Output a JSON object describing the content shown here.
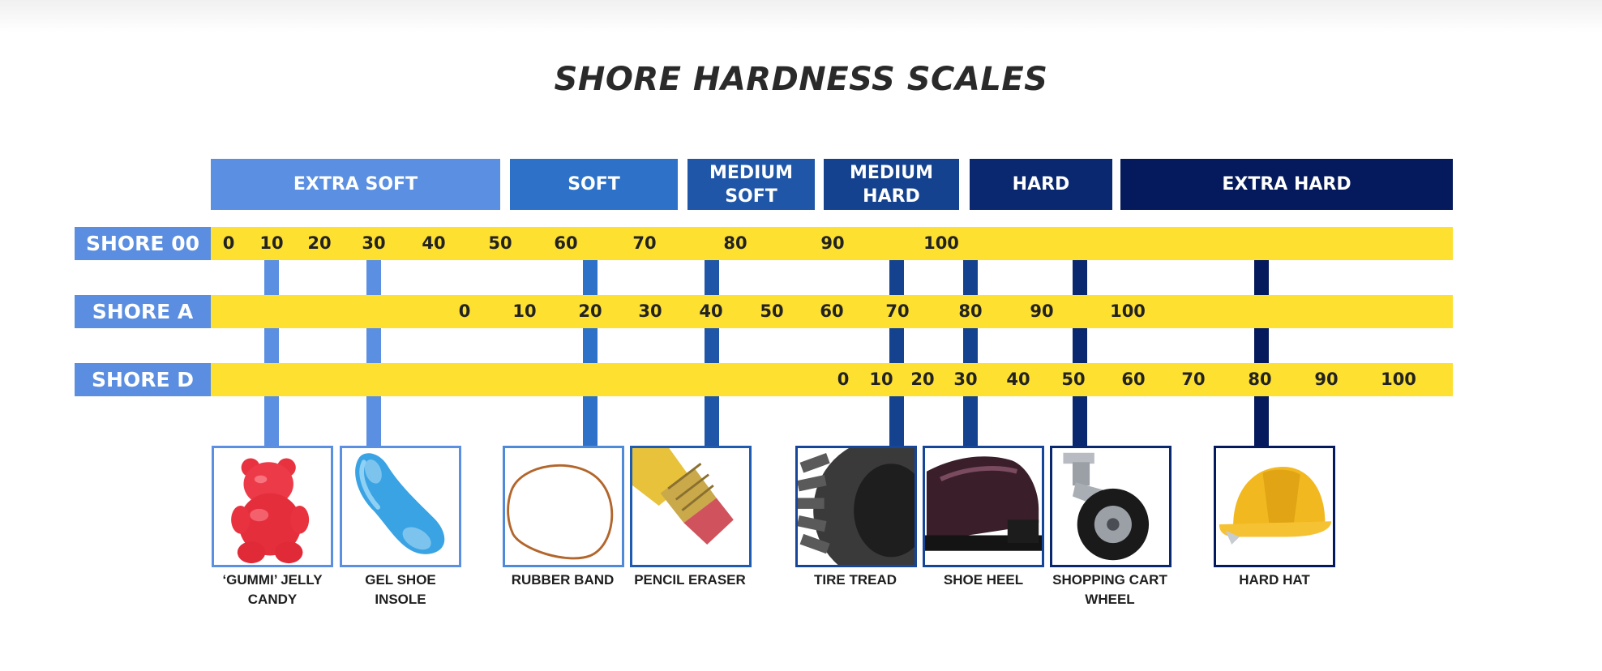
{
  "title": "SHORE HARDNESS SCALES",
  "categories": [
    {
      "label": "EXTRA SOFT",
      "color": "#5b8fe2"
    },
    {
      "label": "SOFT",
      "color": "#2d72c8"
    },
    {
      "label": "MEDIUM\nSOFT",
      "color": "#1f56a8"
    },
    {
      "label": "MEDIUM\nHARD",
      "color": "#15428e"
    },
    {
      "label": "HARD",
      "color": "#0a2870"
    },
    {
      "label": "EXTRA HARD",
      "color": "#051a5c"
    }
  ],
  "scales": [
    {
      "name": "SHORE 00",
      "ticks": [
        "0",
        "10",
        "20",
        "30",
        "40",
        "50",
        "60",
        "70",
        "80",
        "90",
        "100"
      ]
    },
    {
      "name": "SHORE A",
      "ticks": [
        "0",
        "10",
        "20",
        "30",
        "40",
        "50",
        "60",
        "70",
        "80",
        "90",
        "100"
      ]
    },
    {
      "name": "SHORE D",
      "ticks": [
        "0",
        "10",
        "20",
        "30",
        "40",
        "50",
        "60",
        "70",
        "80",
        "90",
        "100"
      ]
    }
  ],
  "examples": [
    {
      "label": "‘GUMMI’ JELLY\nCANDY",
      "icon": "gummy-bear-icon",
      "color": "#5b8fe2"
    },
    {
      "label": "GEL SHOE\nINSOLE",
      "icon": "shoe-insole-icon",
      "color": "#5b8fe2"
    },
    {
      "label": "RUBBER BAND",
      "icon": "rubber-band-icon",
      "color": "#4f8ad8"
    },
    {
      "label": "PENCIL ERASER",
      "icon": "pencil-eraser-icon",
      "color": "#1f5bb0"
    },
    {
      "label": "TIRE TREAD",
      "icon": "tire-icon",
      "color": "#16469a"
    },
    {
      "label": "SHOE HEEL",
      "icon": "shoe-icon",
      "color": "#16469a"
    },
    {
      "label": "SHOPPING CART\nWHEEL",
      "icon": "caster-wheel-icon",
      "color": "#0a2870"
    },
    {
      "label": "HARD HAT",
      "icon": "hard-hat-icon",
      "color": "#051a5c"
    }
  ]
}
